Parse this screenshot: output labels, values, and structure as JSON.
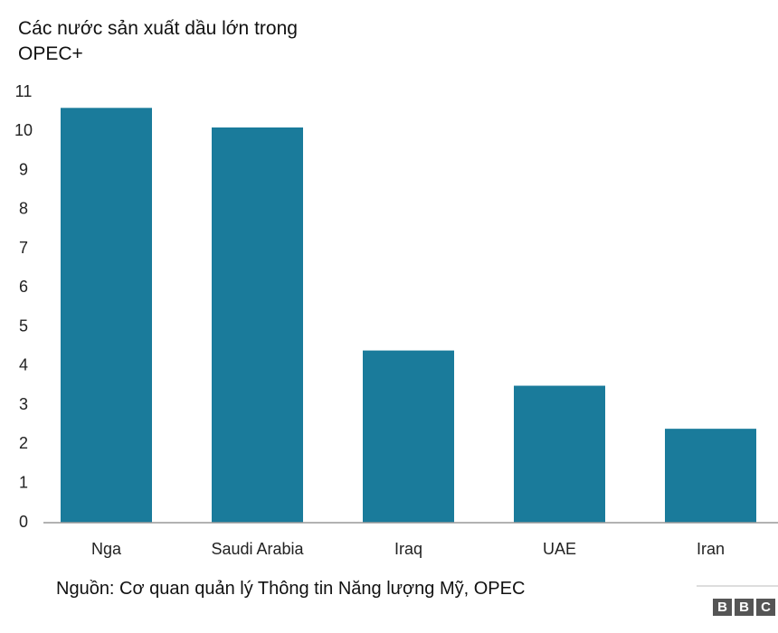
{
  "chart_data": {
    "type": "bar",
    "title": "Các nước sản xuất dầu lớn trong OPEC+",
    "categories": [
      "Nga",
      "Saudi Arabia",
      "Iraq",
      "UAE",
      "Iran"
    ],
    "values": [
      10.6,
      10.1,
      4.4,
      3.5,
      2.4
    ],
    "color": "#1a7b9b",
    "ylim": [
      0,
      11
    ],
    "yticks": [
      0,
      1,
      2,
      3,
      4,
      5,
      6,
      7,
      8,
      9,
      10,
      11
    ],
    "grid": false,
    "source": "Nguồn: Cơ quan quản lý Thông tin Năng lượng Mỹ, OPEC",
    "logo": [
      "B",
      "B",
      "C"
    ]
  }
}
